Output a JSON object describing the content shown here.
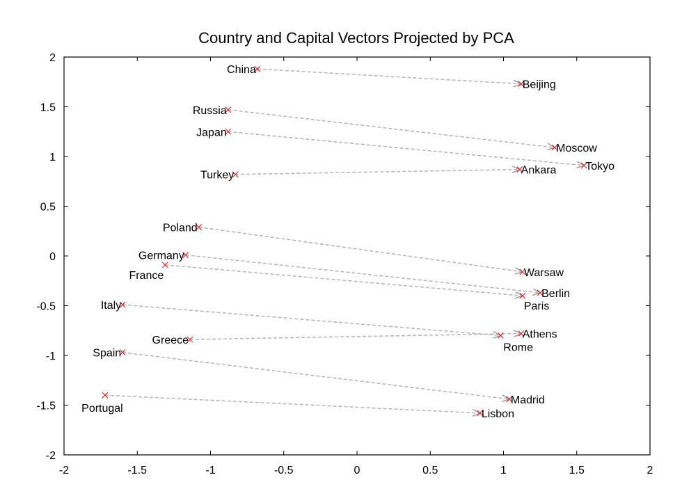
{
  "chart_data": {
    "type": "scatter",
    "title": "Country and Capital Vectors Projected by PCA",
    "xlabel": "",
    "ylabel": "",
    "xlim": [
      -2,
      2
    ],
    "ylim": [
      -2,
      2
    ],
    "xticks": [
      -2,
      -1.5,
      -1,
      -0.5,
      0,
      0.5,
      1,
      1.5,
      2
    ],
    "yticks": [
      -2,
      -1.5,
      -1,
      -0.5,
      0,
      0.5,
      1,
      1.5,
      2
    ],
    "xtick_labels": [
      "-2",
      "-1.5",
      "-1",
      "-0.5",
      "0",
      "0.5",
      "1",
      "1.5",
      "2"
    ],
    "ytick_labels": [
      "-2",
      "-1.5",
      "-1",
      "-0.5",
      "0",
      "0.5",
      "1",
      "1.5",
      "2"
    ],
    "grid": false,
    "colors": {
      "marker": "#e8262a",
      "arrow": "#b8b8b8"
    },
    "pairs": [
      {
        "country": "China",
        "country_xy": [
          -0.68,
          1.88
        ],
        "capital": "Beijing",
        "capital_xy": [
          1.12,
          1.73
        ]
      },
      {
        "country": "Russia",
        "country_xy": [
          -0.88,
          1.47
        ],
        "capital": "Moscow",
        "capital_xy": [
          1.35,
          1.09
        ]
      },
      {
        "country": "Japan",
        "country_xy": [
          -0.88,
          1.25
        ],
        "capital": "Tokyo",
        "capital_xy": [
          1.55,
          0.91
        ]
      },
      {
        "country": "Turkey",
        "country_xy": [
          -0.83,
          0.82
        ],
        "capital": "Ankara",
        "capital_xy": [
          1.11,
          0.87
        ]
      },
      {
        "country": "Poland",
        "country_xy": [
          -1.08,
          0.29
        ],
        "capital": "Warsaw",
        "capital_xy": [
          1.13,
          -0.16
        ]
      },
      {
        "country": "Germany",
        "country_xy": [
          -1.17,
          0.01
        ],
        "capital": "Berlin",
        "capital_xy": [
          1.25,
          -0.37
        ]
      },
      {
        "country": "France",
        "country_xy": [
          -1.31,
          -0.09
        ],
        "capital": "Paris",
        "capital_xy": [
          1.13,
          -0.4
        ]
      },
      {
        "country": "Italy",
        "country_xy": [
          -1.6,
          -0.49
        ],
        "capital": "Rome",
        "capital_xy": [
          0.98,
          -0.8
        ]
      },
      {
        "country": "Greece",
        "country_xy": [
          -1.14,
          -0.84
        ],
        "capital": "Athens",
        "capital_xy": [
          1.12,
          -0.78
        ]
      },
      {
        "country": "Spain",
        "country_xy": [
          -1.6,
          -0.97
        ],
        "capital": "Madrid",
        "capital_xy": [
          1.04,
          -1.44
        ]
      },
      {
        "country": "Portugal",
        "country_xy": [
          -1.72,
          -1.4
        ],
        "capital": "Lisbon",
        "capital_xy": [
          0.84,
          -1.58
        ]
      }
    ]
  }
}
